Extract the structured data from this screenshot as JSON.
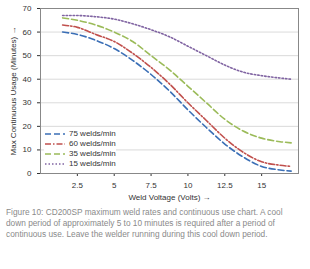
{
  "chart_data": {
    "type": "line",
    "caption": "Figure 10: CD200SP maximum weld rates and continuous use chart. A cool down period of approximately 5 to 10 minutes is required after a period of continuous use. Leave the welder running during this cool down period.",
    "x_label": "Weld Voltage (Volts)",
    "y_label": "Max Continuous Usage (Minutes)",
    "x": [
      1.5,
      2.5,
      3.75,
      5,
      6.25,
      7.5,
      8.75,
      10,
      11.25,
      12.5,
      13.75,
      15,
      16.25,
      17
    ],
    "series": [
      {
        "name": "75 welds/min",
        "color": "#3b6fb6",
        "line_style": "dashed",
        "values": [
          60,
          59,
          56.5,
          53,
          48,
          42,
          35,
          27,
          19.5,
          12.5,
          7,
          3,
          1.5,
          1
        ]
      },
      {
        "name": "60 welds/min",
        "color": "#c0504d",
        "line_style": "dashdot",
        "values": [
          63,
          62,
          59,
          56,
          51,
          45,
          38,
          30,
          22.5,
          15,
          9,
          5,
          3.5,
          3
        ]
      },
      {
        "name": "35 welds/min",
        "color": "#9bbb59",
        "line_style": "dashed",
        "values": [
          66,
          65,
          63,
          60,
          56,
          50,
          44,
          37,
          30,
          23,
          18,
          15,
          13.5,
          13
        ]
      },
      {
        "name": "15 welds/min",
        "color": "#8064a2",
        "line_style": "dotted",
        "values": [
          67,
          67,
          66.5,
          65.5,
          63.5,
          61,
          58,
          54,
          50,
          46,
          43,
          41.5,
          40.5,
          40
        ]
      }
    ],
    "xlim": [
      0,
      17.5
    ],
    "xticks": [
      2.5,
      5,
      7.5,
      10,
      12.5,
      15
    ],
    "ylim": [
      0,
      70
    ],
    "yticks": [
      0,
      10,
      20,
      30,
      40,
      50,
      60,
      70
    ],
    "grid": true,
    "legend": "bottom-left"
  }
}
